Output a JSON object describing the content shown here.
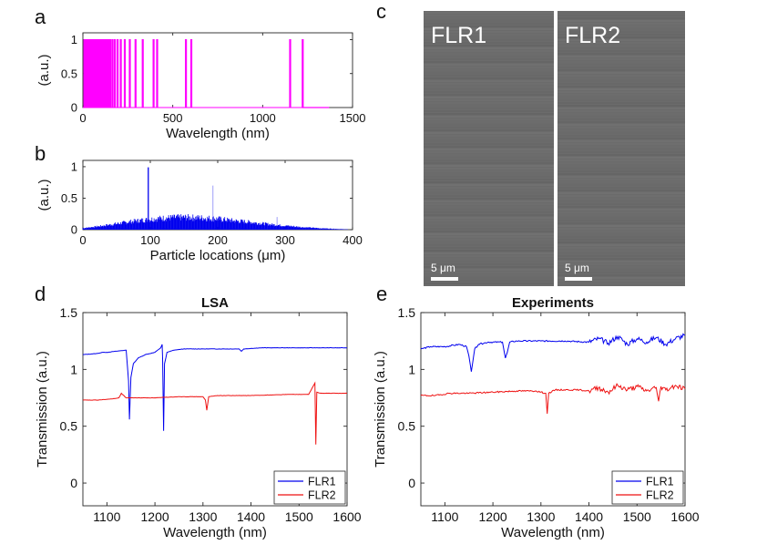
{
  "figure": {
    "panel_labels": [
      "a",
      "b",
      "c",
      "d",
      "e"
    ]
  },
  "colors": {
    "magenta": "#ff00ff",
    "blue": "#0000ee",
    "red": "#ee1111",
    "axis": "#262626",
    "sem_bg": "#6b6b6b",
    "scale_bar": "#ffffff"
  },
  "chart_data": [
    {
      "panel": "a",
      "type": "bar",
      "title": "",
      "xlabel": "Wavelength (nm)",
      "ylabel": "(a.u.)",
      "xlim": [
        0,
        1500
      ],
      "ylim": [
        0,
        1.1
      ],
      "xticks": [
        0,
        500,
        1000,
        1500
      ],
      "yticks": [
        0,
        0.5,
        1
      ],
      "color": "#ff00ff",
      "note": "Binary spectrum: value 1 at listed wavelengths, 0 elsewhere. Dense cluster 0-140 nm.",
      "x": [
        5,
        8,
        11,
        14,
        17,
        20,
        23,
        26,
        29,
        32,
        35,
        38,
        41,
        44,
        47,
        50,
        53,
        56,
        59,
        62,
        65,
        68,
        71,
        74,
        77,
        80,
        84,
        88,
        92,
        96,
        101,
        106,
        112,
        118,
        125,
        133,
        140,
        150,
        162,
        175,
        190,
        208,
        230,
        258,
        290,
        330,
        390,
        410,
        570,
        600,
        1150,
        1220
      ],
      "y_value": 1
    },
    {
      "panel": "b",
      "type": "bar",
      "title": "",
      "xlabel": "Particle locations (μm)",
      "ylabel": "(a.u.)",
      "xlim": [
        0,
        400
      ],
      "ylim": [
        0,
        1.1
      ],
      "xticks": [
        0,
        100,
        200,
        300,
        400
      ],
      "yticks": [
        0,
        0.5,
        1
      ],
      "color": "#0000ee",
      "note": "Dense particle distribution with a broad envelope peaking near 0.25 around 140 μm; isolated spikes listed below.",
      "envelope": {
        "x": [
          0,
          25,
          50,
          75,
          100,
          125,
          150,
          175,
          200,
          225,
          250,
          275,
          300,
          325,
          350,
          375,
          393
        ],
        "y": [
          0.03,
          0.07,
          0.12,
          0.17,
          0.21,
          0.24,
          0.25,
          0.24,
          0.22,
          0.18,
          0.15,
          0.11,
          0.08,
          0.05,
          0.03,
          0.015,
          0.005
        ]
      },
      "spikes": {
        "x": [
          97,
          193,
          288
        ],
        "y": [
          0.99,
          0.7,
          0.2
        ]
      }
    },
    {
      "panel": "d",
      "type": "line",
      "title": "LSA",
      "xlabel": "Wavelength (nm)",
      "ylabel": "Transmission (a.u.)",
      "xlim": [
        1050,
        1600
      ],
      "ylim": [
        -0.2,
        1.5
      ],
      "xticks": [
        1100,
        1200,
        1300,
        1400,
        1500,
        1600
      ],
      "yticks": [
        0,
        0.5,
        1,
        1.5
      ],
      "legend": "bottom-right",
      "series": [
        {
          "name": "FLR1",
          "color": "#0000ee",
          "x": [
            1050,
            1080,
            1090,
            1100,
            1120,
            1140,
            1145,
            1147,
            1150,
            1155,
            1165,
            1180,
            1200,
            1212,
            1215,
            1216,
            1218,
            1220,
            1225,
            1240,
            1260,
            1300,
            1340,
            1375,
            1380,
            1385,
            1420,
            1500,
            1600
          ],
          "y": [
            1.13,
            1.14,
            1.15,
            1.15,
            1.16,
            1.17,
            0.9,
            0.56,
            0.93,
            1.05,
            1.1,
            1.13,
            1.15,
            1.19,
            1.22,
            1.1,
            0.46,
            1.05,
            1.15,
            1.17,
            1.18,
            1.18,
            1.18,
            1.18,
            1.16,
            1.18,
            1.19,
            1.19,
            1.19
          ]
        },
        {
          "name": "FLR2",
          "color": "#ee1111",
          "x": [
            1050,
            1080,
            1110,
            1125,
            1130,
            1140,
            1160,
            1200,
            1250,
            1300,
            1305,
            1308,
            1312,
            1330,
            1400,
            1480,
            1520,
            1533,
            1535,
            1537,
            1545,
            1560,
            1600
          ],
          "y": [
            0.73,
            0.73,
            0.74,
            0.75,
            0.79,
            0.75,
            0.75,
            0.75,
            0.76,
            0.76,
            0.73,
            0.64,
            0.76,
            0.77,
            0.77,
            0.78,
            0.78,
            0.88,
            0.34,
            0.8,
            0.79,
            0.79,
            0.79
          ]
        }
      ]
    },
    {
      "panel": "e",
      "type": "line",
      "title": "Experiments",
      "xlabel": "Wavelength (nm)",
      "ylabel": "Transmission (a.u.)",
      "xlim": [
        1050,
        1600
      ],
      "ylim": [
        -0.2,
        1.5
      ],
      "xticks": [
        1100,
        1200,
        1300,
        1400,
        1500,
        1600
      ],
      "yticks": [
        0,
        0.5,
        1,
        1.5
      ],
      "legend": "bottom-right",
      "series": [
        {
          "name": "FLR1",
          "color": "#0000ee",
          "x": [
            1050,
            1070,
            1100,
            1130,
            1145,
            1150,
            1155,
            1158,
            1162,
            1170,
            1190,
            1220,
            1226,
            1230,
            1235,
            1250,
            1300,
            1350,
            1400,
            1420,
            1440,
            1460,
            1480,
            1500,
            1520,
            1540,
            1560,
            1580,
            1600
          ],
          "y": [
            1.18,
            1.2,
            1.2,
            1.22,
            1.2,
            1.12,
            0.98,
            1.06,
            1.18,
            1.22,
            1.24,
            1.24,
            1.1,
            1.15,
            1.24,
            1.25,
            1.25,
            1.25,
            1.24,
            1.27,
            1.23,
            1.29,
            1.22,
            1.27,
            1.24,
            1.28,
            1.22,
            1.27,
            1.3
          ]
        },
        {
          "name": "FLR2",
          "color": "#ee1111",
          "x": [
            1050,
            1080,
            1110,
            1150,
            1200,
            1250,
            1290,
            1310,
            1313,
            1316,
            1330,
            1380,
            1400,
            1420,
            1440,
            1460,
            1480,
            1500,
            1520,
            1540,
            1545,
            1550,
            1560,
            1580,
            1600
          ],
          "y": [
            0.77,
            0.77,
            0.79,
            0.79,
            0.8,
            0.81,
            0.81,
            0.79,
            0.61,
            0.79,
            0.82,
            0.82,
            0.81,
            0.84,
            0.8,
            0.86,
            0.82,
            0.85,
            0.81,
            0.84,
            0.72,
            0.85,
            0.82,
            0.86,
            0.83
          ]
        }
      ]
    }
  ],
  "sem": {
    "left_label": "FLR1",
    "right_label": "FLR2",
    "scale_bar_text": "5 μm"
  }
}
